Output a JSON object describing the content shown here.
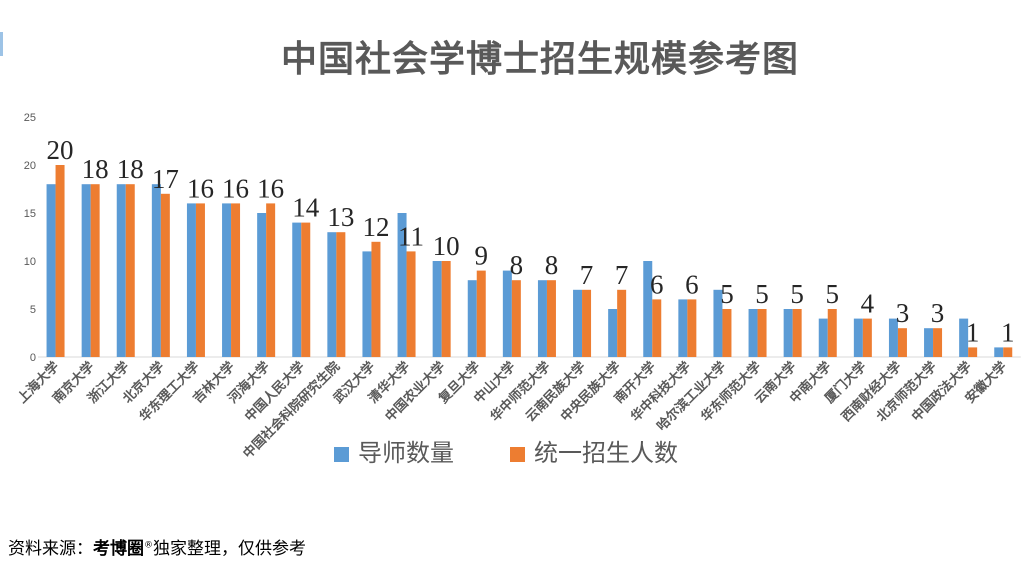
{
  "chart_data": {
    "type": "bar",
    "title": "中国社会学博士招生规模参考图",
    "ylim": [
      0,
      25
    ],
    "yticks": [
      0,
      5,
      10,
      15,
      20,
      25
    ],
    "grid": false,
    "legend_position": "bottom",
    "categories": [
      "上海大学",
      "南京大学",
      "浙江大学",
      "北京大学",
      "华东理工大学",
      "吉林大学",
      "河海大学",
      "中国人民大学",
      "中国社会科院研究生院",
      "武汉大学",
      "清华大学",
      "中国农业大学",
      "复旦大学",
      "中山大学",
      "华中师范大学",
      "云南民族大学",
      "中央民族大学",
      "南开大学",
      "华中科技大学",
      "哈尔滨工业大学",
      "华东师范大学",
      "云南大学",
      "中南大学",
      "厦门大学",
      "西南财经大学",
      "北京师范大学",
      "中国政法大学",
      "安徽大学"
    ],
    "series": [
      {
        "name": "导师数量",
        "color": "#5b9bd5",
        "values": [
          18,
          18,
          18,
          18,
          16,
          16,
          15,
          14,
          13,
          11,
          15,
          10,
          8,
          9,
          8,
          7,
          5,
          10,
          6,
          7,
          5,
          5,
          4,
          4,
          4,
          3,
          4,
          1
        ]
      },
      {
        "name": "统一招生人数",
        "color": "#ed7d31",
        "values": [
          20,
          18,
          18,
          17,
          16,
          16,
          16,
          14,
          13,
          12,
          11,
          10,
          9,
          8,
          8,
          7,
          7,
          6,
          6,
          5,
          5,
          5,
          5,
          4,
          3,
          3,
          1,
          1
        ]
      }
    ],
    "data_labels": [
      20,
      18,
      18,
      17,
      16,
      16,
      16,
      14,
      13,
      12,
      11,
      10,
      9,
      8,
      8,
      7,
      7,
      6,
      6,
      5,
      5,
      5,
      5,
      4,
      3,
      3,
      1,
      1
    ]
  },
  "source": {
    "prefix": "资料来源：",
    "brand": "考博圈",
    "trademark": "®",
    "suffix": "独家整理，仅供参考"
  }
}
